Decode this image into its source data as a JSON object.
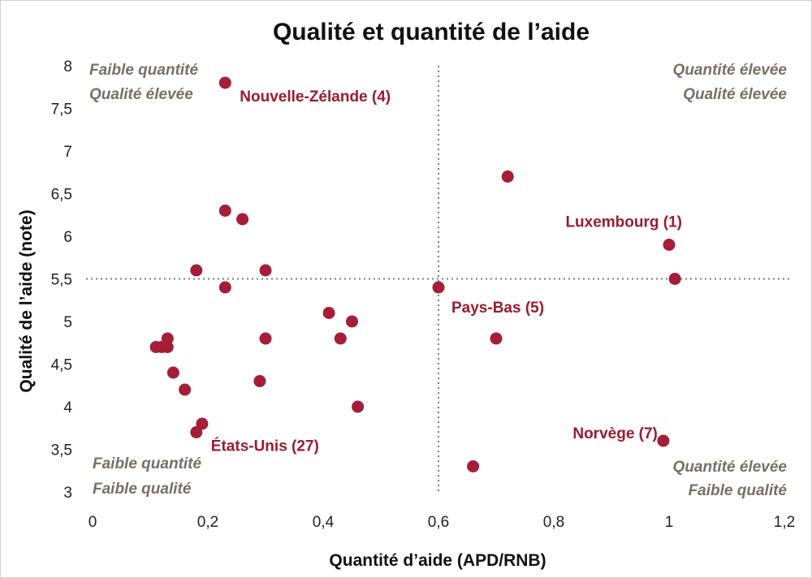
{
  "chart_data": {
    "type": "scatter",
    "title": "Qualité et quantité de l’aide",
    "xlabel": "Quantité d’aide (APD/RNB)",
    "ylabel": "Qualité de l’aide (note)",
    "xlim": [
      0,
      1.2
    ],
    "ylim": [
      3,
      8
    ],
    "x_ticks": [
      "0",
      "0,2",
      "0,4",
      "0,6",
      "0,8",
      "1",
      "1,2"
    ],
    "y_ticks": [
      "3",
      "3,5",
      "4",
      "4,5",
      "5",
      "5,5",
      "6",
      "6,5",
      "7",
      "7,5",
      "8"
    ],
    "grid": false,
    "marker_color": "#a51d36",
    "reference_lines": {
      "x": 0.6,
      "y": 5.5
    },
    "quadrant_labels": {
      "top_left": [
        "Faible quantité",
        "Qualité élevée"
      ],
      "top_right": [
        "Quantité élevée",
        "Qualité élevée"
      ],
      "bottom_left": [
        "Faible quantité",
        "Faible qualité"
      ],
      "bottom_right": [
        "Quantité élevée",
        "Faible qualité"
      ]
    },
    "points": [
      {
        "x": 0.23,
        "y": 7.8,
        "label": "Nouvelle-Zélande (4)"
      },
      {
        "x": 0.72,
        "y": 6.7
      },
      {
        "x": 0.23,
        "y": 6.3
      },
      {
        "x": 0.26,
        "y": 6.2
      },
      {
        "x": 1.0,
        "y": 5.9,
        "label": "Luxembourg (1)"
      },
      {
        "x": 0.18,
        "y": 5.6
      },
      {
        "x": 0.3,
        "y": 5.6
      },
      {
        "x": 1.01,
        "y": 5.5
      },
      {
        "x": 0.23,
        "y": 5.4
      },
      {
        "x": 0.6,
        "y": 5.4,
        "label": "Pays-Bas (5)"
      },
      {
        "x": 0.41,
        "y": 5.1
      },
      {
        "x": 0.45,
        "y": 5.0
      },
      {
        "x": 0.13,
        "y": 4.8
      },
      {
        "x": 0.3,
        "y": 4.8
      },
      {
        "x": 0.43,
        "y": 4.8
      },
      {
        "x": 0.7,
        "y": 4.8
      },
      {
        "x": 0.11,
        "y": 4.7
      },
      {
        "x": 0.12,
        "y": 4.7
      },
      {
        "x": 0.13,
        "y": 4.7
      },
      {
        "x": 0.14,
        "y": 4.4
      },
      {
        "x": 0.29,
        "y": 4.3
      },
      {
        "x": 0.16,
        "y": 4.2
      },
      {
        "x": 0.46,
        "y": 4.0
      },
      {
        "x": 0.19,
        "y": 3.8
      },
      {
        "x": 0.18,
        "y": 3.7,
        "label": "États-Unis (27)"
      },
      {
        "x": 0.99,
        "y": 3.6,
        "label": "Norvège (7)"
      },
      {
        "x": 0.66,
        "y": 3.3
      }
    ]
  }
}
